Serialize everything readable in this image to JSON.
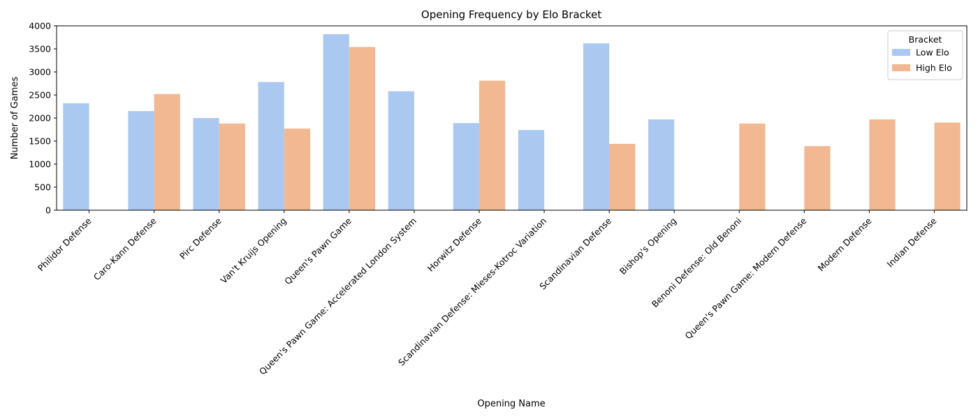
{
  "chart_data": {
    "type": "bar",
    "title": "Opening Frequency by Elo Bracket",
    "xlabel": "Opening Name",
    "ylabel": "Number of Games",
    "ylim": [
      0,
      4000
    ],
    "yticks": [
      0,
      500,
      1000,
      1500,
      2000,
      2500,
      3000,
      3500,
      4000
    ],
    "grid": false,
    "legend": {
      "title": "Bracket",
      "placement": "top-right"
    },
    "categories": [
      "Philidor Defense",
      "Caro-Kann Defense",
      "Pirc Defense",
      "Van't Kruijs Opening",
      "Queen's Pawn Game",
      "Queen's Pawn Game: Accelerated London System",
      "Horwitz Defense",
      "Scandinavian Defense: Mieses-Kotroc Variation",
      "Scandinavian Defense",
      "Bishop's Opening",
      "Benoni Defense: Old Benoni",
      "Queen's Pawn Game: Modern Defense",
      "Modern Defense",
      "Indian Defense"
    ],
    "series": [
      {
        "name": "Low Elo",
        "color": "#abc9f0",
        "values": [
          2320,
          2150,
          2000,
          2780,
          3820,
          2580,
          1890,
          1740,
          3620,
          1970,
          null,
          null,
          null,
          null
        ]
      },
      {
        "name": "High Elo",
        "color": "#f1b891",
        "values": [
          null,
          2520,
          1880,
          1770,
          3540,
          null,
          2810,
          null,
          1440,
          null,
          1880,
          1390,
          1970,
          1900
        ]
      }
    ]
  }
}
